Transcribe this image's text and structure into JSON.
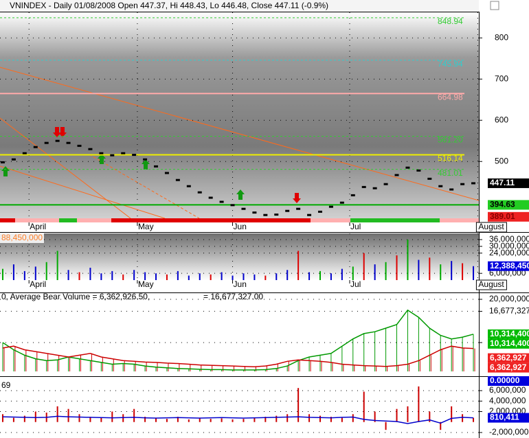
{
  "chart_data": [
    {
      "type": "price",
      "title": "VNINDEX - Daily 01/08/2008 Open 447.37, Hi 448.43, Lo 446.48, Close 447.11 (-0.9%)",
      "x": [
        0,
        1,
        2,
        3,
        4,
        5,
        6,
        7,
        8,
        9,
        10,
        11,
        12,
        13,
        14,
        15,
        16,
        17,
        18,
        19,
        20,
        21,
        22,
        23,
        24,
        25,
        26,
        27,
        28,
        29,
        30,
        31,
        32,
        33,
        34,
        35,
        36,
        37,
        38,
        39,
        40,
        41,
        42,
        43
      ],
      "xlim": [
        -0.25,
        43.5
      ],
      "xticks": [
        {
          "value": 2.4,
          "label": "April"
        },
        {
          "value": 12.3,
          "label": "May"
        },
        {
          "value": 21,
          "label": "Jun"
        },
        {
          "value": 31.7,
          "label": "Jul"
        },
        {
          "value": 43.4,
          "label": "August"
        }
      ],
      "ylim": [
        362,
        862
      ],
      "yticks": [
        500,
        600,
        700,
        800
      ],
      "series": [
        {
          "color": "#000000",
          "values": [
            498,
            505,
            520,
            535,
            545,
            550,
            545,
            538,
            530,
            520,
            515,
            520,
            516,
            505,
            488,
            472,
            455,
            440,
            425,
            412,
            402,
            394,
            385,
            376,
            370,
            371,
            380,
            385,
            370,
            378,
            390,
            400,
            418,
            438,
            435,
            445,
            467,
            485,
            478,
            458,
            440,
            432,
            445,
            447.11
          ]
        }
      ],
      "levels": [
        {
          "value": 848.94,
          "color": "#33cc33",
          "dash": true,
          "labeled": true
        },
        {
          "value": 745.94,
          "color": "#33cccc",
          "dash": true,
          "labeled": true
        },
        {
          "value": 664.98,
          "color": "#ffaaaa",
          "dash": false,
          "labeled": true
        },
        {
          "value": 561.2,
          "label": "561.20",
          "color": "#33cc33",
          "dash": true,
          "labeled": true
        },
        {
          "value": 516.14,
          "color": "#eeee00",
          "dash": false,
          "labeled": true
        },
        {
          "value": 481.01,
          "color": "#33cc33",
          "dash": true,
          "labeled": true
        },
        {
          "value": 394.63,
          "color": "#00aa00",
          "dash": false,
          "labeled": false
        }
      ],
      "markers": [
        {
          "value": 447.11,
          "color": "#000000",
          "text_color": "#ffffff"
        },
        {
          "value": 394.63,
          "color": "#22cc22",
          "text_color": "#000000"
        },
        {
          "value": 389.01,
          "color": "#ee2222",
          "text_color": "#880000"
        }
      ]
    },
    {
      "type": "bar",
      "title": "88,450,000",
      "x": [
        0,
        1,
        2,
        3,
        4,
        5,
        6,
        7,
        8,
        9,
        10,
        11,
        12,
        13,
        14,
        15,
        16,
        17,
        18,
        19,
        20,
        21,
        22,
        23,
        24,
        25,
        26,
        27,
        28,
        29,
        30,
        31,
        32,
        33,
        34,
        35,
        36,
        37,
        38,
        39,
        40,
        41,
        42,
        43
      ],
      "xlim": [
        -0.25,
        43.5
      ],
      "xticks": [
        {
          "value": 2.4,
          "label": "April"
        },
        {
          "value": 12.3,
          "label": "May"
        },
        {
          "value": 21,
          "label": "Jun"
        },
        {
          "value": 31.7,
          "label": "Jul"
        },
        {
          "value": 43.4,
          "label": "August"
        }
      ],
      "ylim": [
        0,
        41500000
      ],
      "yticks": [
        {
          "value": 6000000,
          "label": "6,000,000"
        },
        {
          "value": 24000000,
          "label": "24,000,000"
        },
        {
          "value": 30000000,
          "label": "30,000,000"
        },
        {
          "value": 36000000,
          "label": "36,000,000"
        }
      ],
      "values": [
        10000000,
        14000000,
        8000000,
        12000000,
        16000000,
        26000000,
        9000000,
        7000000,
        11000000,
        6000000,
        8000000,
        5000000,
        9000000,
        7000000,
        6000000,
        5000000,
        8000000,
        4000000,
        6000000,
        5000000,
        7000000,
        4000000,
        6000000,
        5000000,
        4000000,
        6000000,
        9000000,
        26000000,
        7000000,
        8000000,
        6000000,
        10000000,
        12000000,
        24000000,
        14000000,
        16000000,
        22000000,
        36000000,
        18000000,
        20000000,
        14000000,
        17000000,
        15000000,
        12388450
      ],
      "colors": [
        "#00aa00",
        "#0000cc",
        "#0000cc",
        "#0000cc",
        "#00aa00",
        "#00aa00",
        "#0000cc",
        "#dd0000",
        "#0000cc",
        "#0000cc",
        "#0000cc",
        "#dd0000",
        "#0000cc",
        "#0000cc",
        "#0000cc",
        "#dd0000",
        "#0000cc",
        "#0000cc",
        "#0000cc",
        "#dd0000",
        "#0000cc",
        "#0000cc",
        "#0000cc",
        "#0000cc",
        "#dd0000",
        "#0000cc",
        "#0000cc",
        "#dd0000",
        "#0000cc",
        "#00aa00",
        "#0000cc",
        "#0000cc",
        "#00aa00",
        "#dd0000",
        "#0000cc",
        "#00aa00",
        "#dd0000",
        "#00aa00",
        "#0000cc",
        "#dd0000",
        "#00aa00",
        "#0000cc",
        "#dd0000",
        "#0000cc"
      ],
      "markers": [
        {
          "value": 12388450,
          "label": "12,388,450",
          "color": "#0000dd",
          "text_color": "#ffffff"
        }
      ]
    },
    {
      "type": "line",
      "stems": true,
      "title": "0, Average Bear Volume = 6,362,926.50,",
      "subtitle": "= 16,677,327.00",
      "x": [
        0,
        1,
        2,
        3,
        4,
        5,
        6,
        7,
        8,
        9,
        10,
        11,
        12,
        13,
        14,
        15,
        16,
        17,
        18,
        19,
        20,
        21,
        22,
        23,
        24,
        25,
        26,
        27,
        28,
        29,
        30,
        31,
        32,
        33,
        34,
        35,
        36,
        37,
        38,
        39,
        40,
        41,
        42,
        43
      ],
      "xlim": [
        -0.25,
        43.5
      ],
      "ylim": [
        -760000,
        21520000
      ],
      "yticks": [
        {
          "value": 8000000,
          "label": "8,000,000"
        },
        {
          "value": 16677327,
          "label": "16,677,327"
        },
        {
          "value": 20000000,
          "label": "20,000,000"
        }
      ],
      "series": [
        {
          "color": "#009900",
          "values": [
            8000000,
            6000000,
            4500000,
            3500000,
            3000000,
            3200000,
            4000000,
            3500000,
            3000000,
            2500000,
            2000000,
            2200000,
            2000000,
            1500000,
            1200000,
            1000000,
            800000,
            700000,
            600000,
            500000,
            500000,
            400000,
            400000,
            400000,
            500000,
            800000,
            1500000,
            3000000,
            4000000,
            4500000,
            5000000,
            7000000,
            9000000,
            10500000,
            11000000,
            12000000,
            13000000,
            17000000,
            15000000,
            12000000,
            10000000,
            9000000,
            9500000,
            10314400
          ]
        },
        {
          "color": "#cc0000",
          "values": [
            6500000,
            7000000,
            6000000,
            5500000,
            5000000,
            4500000,
            4000000,
            4500000,
            5000000,
            4000000,
            3500000,
            3000000,
            2800000,
            2600000,
            2500000,
            2300000,
            2200000,
            2000000,
            1800000,
            1700000,
            1600000,
            1500000,
            1400000,
            1300000,
            1500000,
            2000000,
            2800000,
            3200000,
            3000000,
            2800000,
            2500000,
            2000000,
            1800000,
            1600000,
            1500000,
            1400000,
            1600000,
            2000000,
            3000000,
            4500000,
            6000000,
            7000000,
            6500000,
            6362927
          ]
        }
      ],
      "markers": [
        {
          "value": 10314400,
          "label": "10,314,400",
          "color": "#00bb00",
          "text_color": "#ffffff"
        },
        {
          "value": 10314400,
          "label": "10,314,400",
          "color": "#00bb00",
          "text_color": "#ffffff"
        },
        {
          "value": 6362927,
          "label": "6,362,927",
          "color": "#ee2222",
          "text_color": "#ffffff"
        },
        {
          "value": 6362927,
          "label": "6,362,927",
          "color": "#ee2222",
          "text_color": "#ffffff"
        },
        {
          "value": 0,
          "label": "0.00000",
          "color": "#0000dd",
          "text_color": "#ffffff"
        }
      ]
    },
    {
      "type": "combo",
      "title": "69",
      "x": [
        0,
        1,
        2,
        3,
        4,
        5,
        6,
        7,
        8,
        9,
        10,
        11,
        12,
        13,
        14,
        15,
        16,
        17,
        18,
        19,
        20,
        21,
        22,
        23,
        24,
        25,
        26,
        27,
        28,
        29,
        30,
        31,
        32,
        33,
        34,
        35,
        36,
        37,
        38,
        39,
        40,
        41,
        42,
        43
      ],
      "xlim": [
        -0.25,
        43.5
      ],
      "ylim": [
        -3050000,
        8490000
      ],
      "yticks": [
        {
          "value": -2000000,
          "label": "-2,000,000"
        },
        {
          "value": 2000000,
          "label": "2,000,000"
        },
        {
          "value": 4000000,
          "label": "4,000,000"
        },
        {
          "value": 6000000,
          "label": "6,000,000"
        }
      ],
      "series": [
        {
          "type": "bar",
          "color": "#cc0000",
          "values": [
            1500000,
            800000,
            1200000,
            2000000,
            1800000,
            3000000,
            2500000,
            1500000,
            1000000,
            800000,
            2000000,
            1500000,
            2500000,
            1000000,
            800000,
            600000,
            1000000,
            500000,
            800000,
            600000,
            700000,
            500000,
            600000,
            800000,
            1000000,
            1200000,
            1500000,
            6500000,
            1500000,
            1200000,
            1000000,
            800000,
            1500000,
            5800000,
            2000000,
            -1500000,
            2500000,
            3000000,
            6800000,
            2000000,
            -1500000,
            3000000,
            1500000,
            800000
          ]
        },
        {
          "type": "line",
          "color": "#0000cc",
          "values": [
            1000000,
            950000,
            900000,
            850000,
            900000,
            1100000,
            1000000,
            950000,
            900000,
            850000,
            800000,
            850000,
            900000,
            800000,
            750000,
            800000,
            850000,
            800000,
            750000,
            800000,
            850000,
            800000,
            750000,
            800000,
            850000,
            900000,
            950000,
            1000000,
            900000,
            850000,
            800000,
            900000,
            950000,
            500000,
            300000,
            200000,
            100000,
            -300000,
            100000,
            400000,
            -200000,
            700000,
            900000,
            810411
          ]
        }
      ],
      "markers": [
        {
          "value": 810411,
          "label": "810,411",
          "color": "#0000dd",
          "text_color": "#ffffff"
        }
      ]
    }
  ]
}
